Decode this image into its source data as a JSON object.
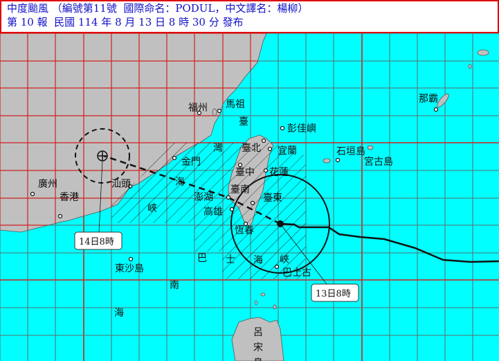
{
  "header": {
    "line1": "中度颱風 （編號第11號  國際命名：PODUL，中文譯名：楊柳）",
    "line2": "第 10 報  民國 114 年 8 月 13 日 8 時 30 分 發布"
  },
  "colors": {
    "sea": "#00ffff",
    "land": "#c0c0c0",
    "grid": "#5a6e6e",
    "grid_major": "#d02020",
    "title_text": "#1010c8",
    "title_border": "#e00000"
  },
  "map": {
    "places": {
      "fuzhou": "福州",
      "matsu": "馬祖",
      "pengjia": "彭佳嶼",
      "taipei": "臺北",
      "yilan": "宜蘭",
      "kinmen": "金門",
      "taichung": "臺中",
      "hualien": "花蓮",
      "penghu": "澎湖",
      "tainan": "臺南",
      "taitung": "臺東",
      "kaohsiung": "高雄",
      "hengchun": "恆春",
      "guangzhou": "廣州",
      "hongkong": "香港",
      "shantou": "汕頭",
      "dongsha": "東沙島",
      "naha": "那霸",
      "ishigaki": "石垣島",
      "miyako": "宮古島",
      "babuyan": "巴士古",
      "luzon_1": "呂",
      "luzon_2": "宋",
      "luzon_3": "島"
    },
    "seas": {
      "strait_1": "臺",
      "strait_2": "灣",
      "strait_3": "海",
      "strait_4": "峽",
      "bashi_1": "巴",
      "bashi_2": "士",
      "bashi_3": "海",
      "bashi_4": "峽",
      "scs_1": "南",
      "scs_2": "海"
    },
    "track": {
      "current_label": "13日8時",
      "forecast_label": "14日8時"
    }
  }
}
